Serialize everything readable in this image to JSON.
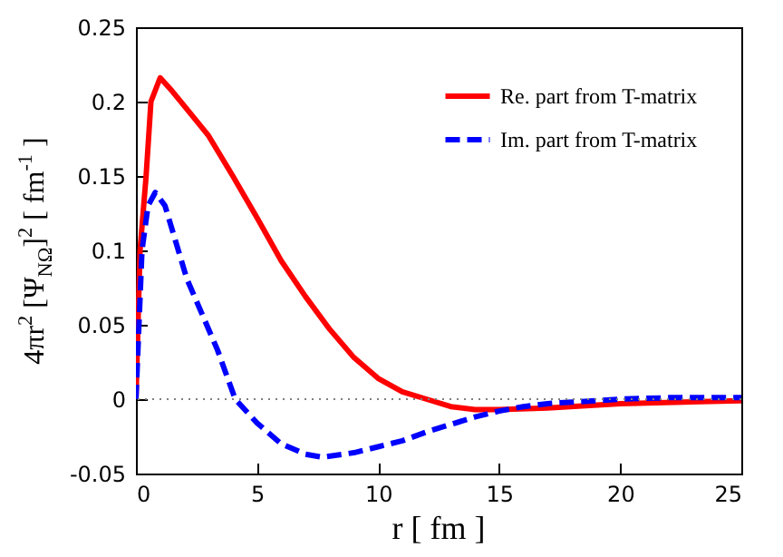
{
  "chart_data": {
    "type": "line",
    "xlabel": "r  [ fm ]",
    "ylabel": "4πr$^{2}$ [Ψ$_{NΩ}$]$^{2}$  [ fm$^{-1}$ ]",
    "xlim": [
      0,
      25
    ],
    "xticks": [
      0,
      5,
      10,
      15,
      20,
      25
    ],
    "ylim": [
      -0.05,
      0.25
    ],
    "yticks": [
      -0.05,
      0,
      0.05,
      0.1,
      0.15,
      0.2,
      0.25
    ],
    "grid": false,
    "legend": "top right",
    "marker": "none",
    "ref_lines": [
      {
        "axis": "y",
        "value": 0,
        "color": "#808080",
        "line_style": "dotted"
      }
    ],
    "series": [
      {
        "name": "Re. part from T-matrix",
        "color": "#ff0000",
        "line_style": "solid",
        "x": [
          0,
          0.17,
          0.42,
          0.62,
          1.0,
          1.5,
          2,
          3,
          4,
          5,
          6,
          7,
          8,
          9,
          10,
          11,
          12,
          13,
          14,
          15,
          17,
          20,
          25
        ],
        "values": [
          0,
          0.1,
          0.15,
          0.2,
          0.216,
          0.207,
          0.197,
          0.177,
          0.15,
          0.122,
          0.093,
          0.069,
          0.047,
          0.028,
          0.014,
          0.005,
          0,
          -0.005,
          -0.007,
          -0.007,
          -0.006,
          -0.003,
          -0.001
        ]
      },
      {
        "name": "Im. part from T-matrix",
        "color": "#0000ff",
        "line_style": "dashed",
        "x": [
          0,
          0.25,
          0.5,
          0.8,
          1.2,
          2.1,
          3.37,
          4.1,
          5,
          6,
          7,
          7.7,
          9,
          10,
          11,
          12,
          13,
          14,
          15,
          16,
          17,
          18,
          20,
          22,
          25
        ],
        "values": [
          0,
          0.1,
          0.13,
          0.139,
          0.13,
          0.081,
          0.033,
          0,
          -0.016,
          -0.03,
          -0.037,
          -0.039,
          -0.036,
          -0.032,
          -0.028,
          -0.022,
          -0.017,
          -0.012,
          -0.008,
          -0.005,
          -0.003,
          -0.002,
          0,
          0.001,
          0.001
        ]
      }
    ]
  }
}
